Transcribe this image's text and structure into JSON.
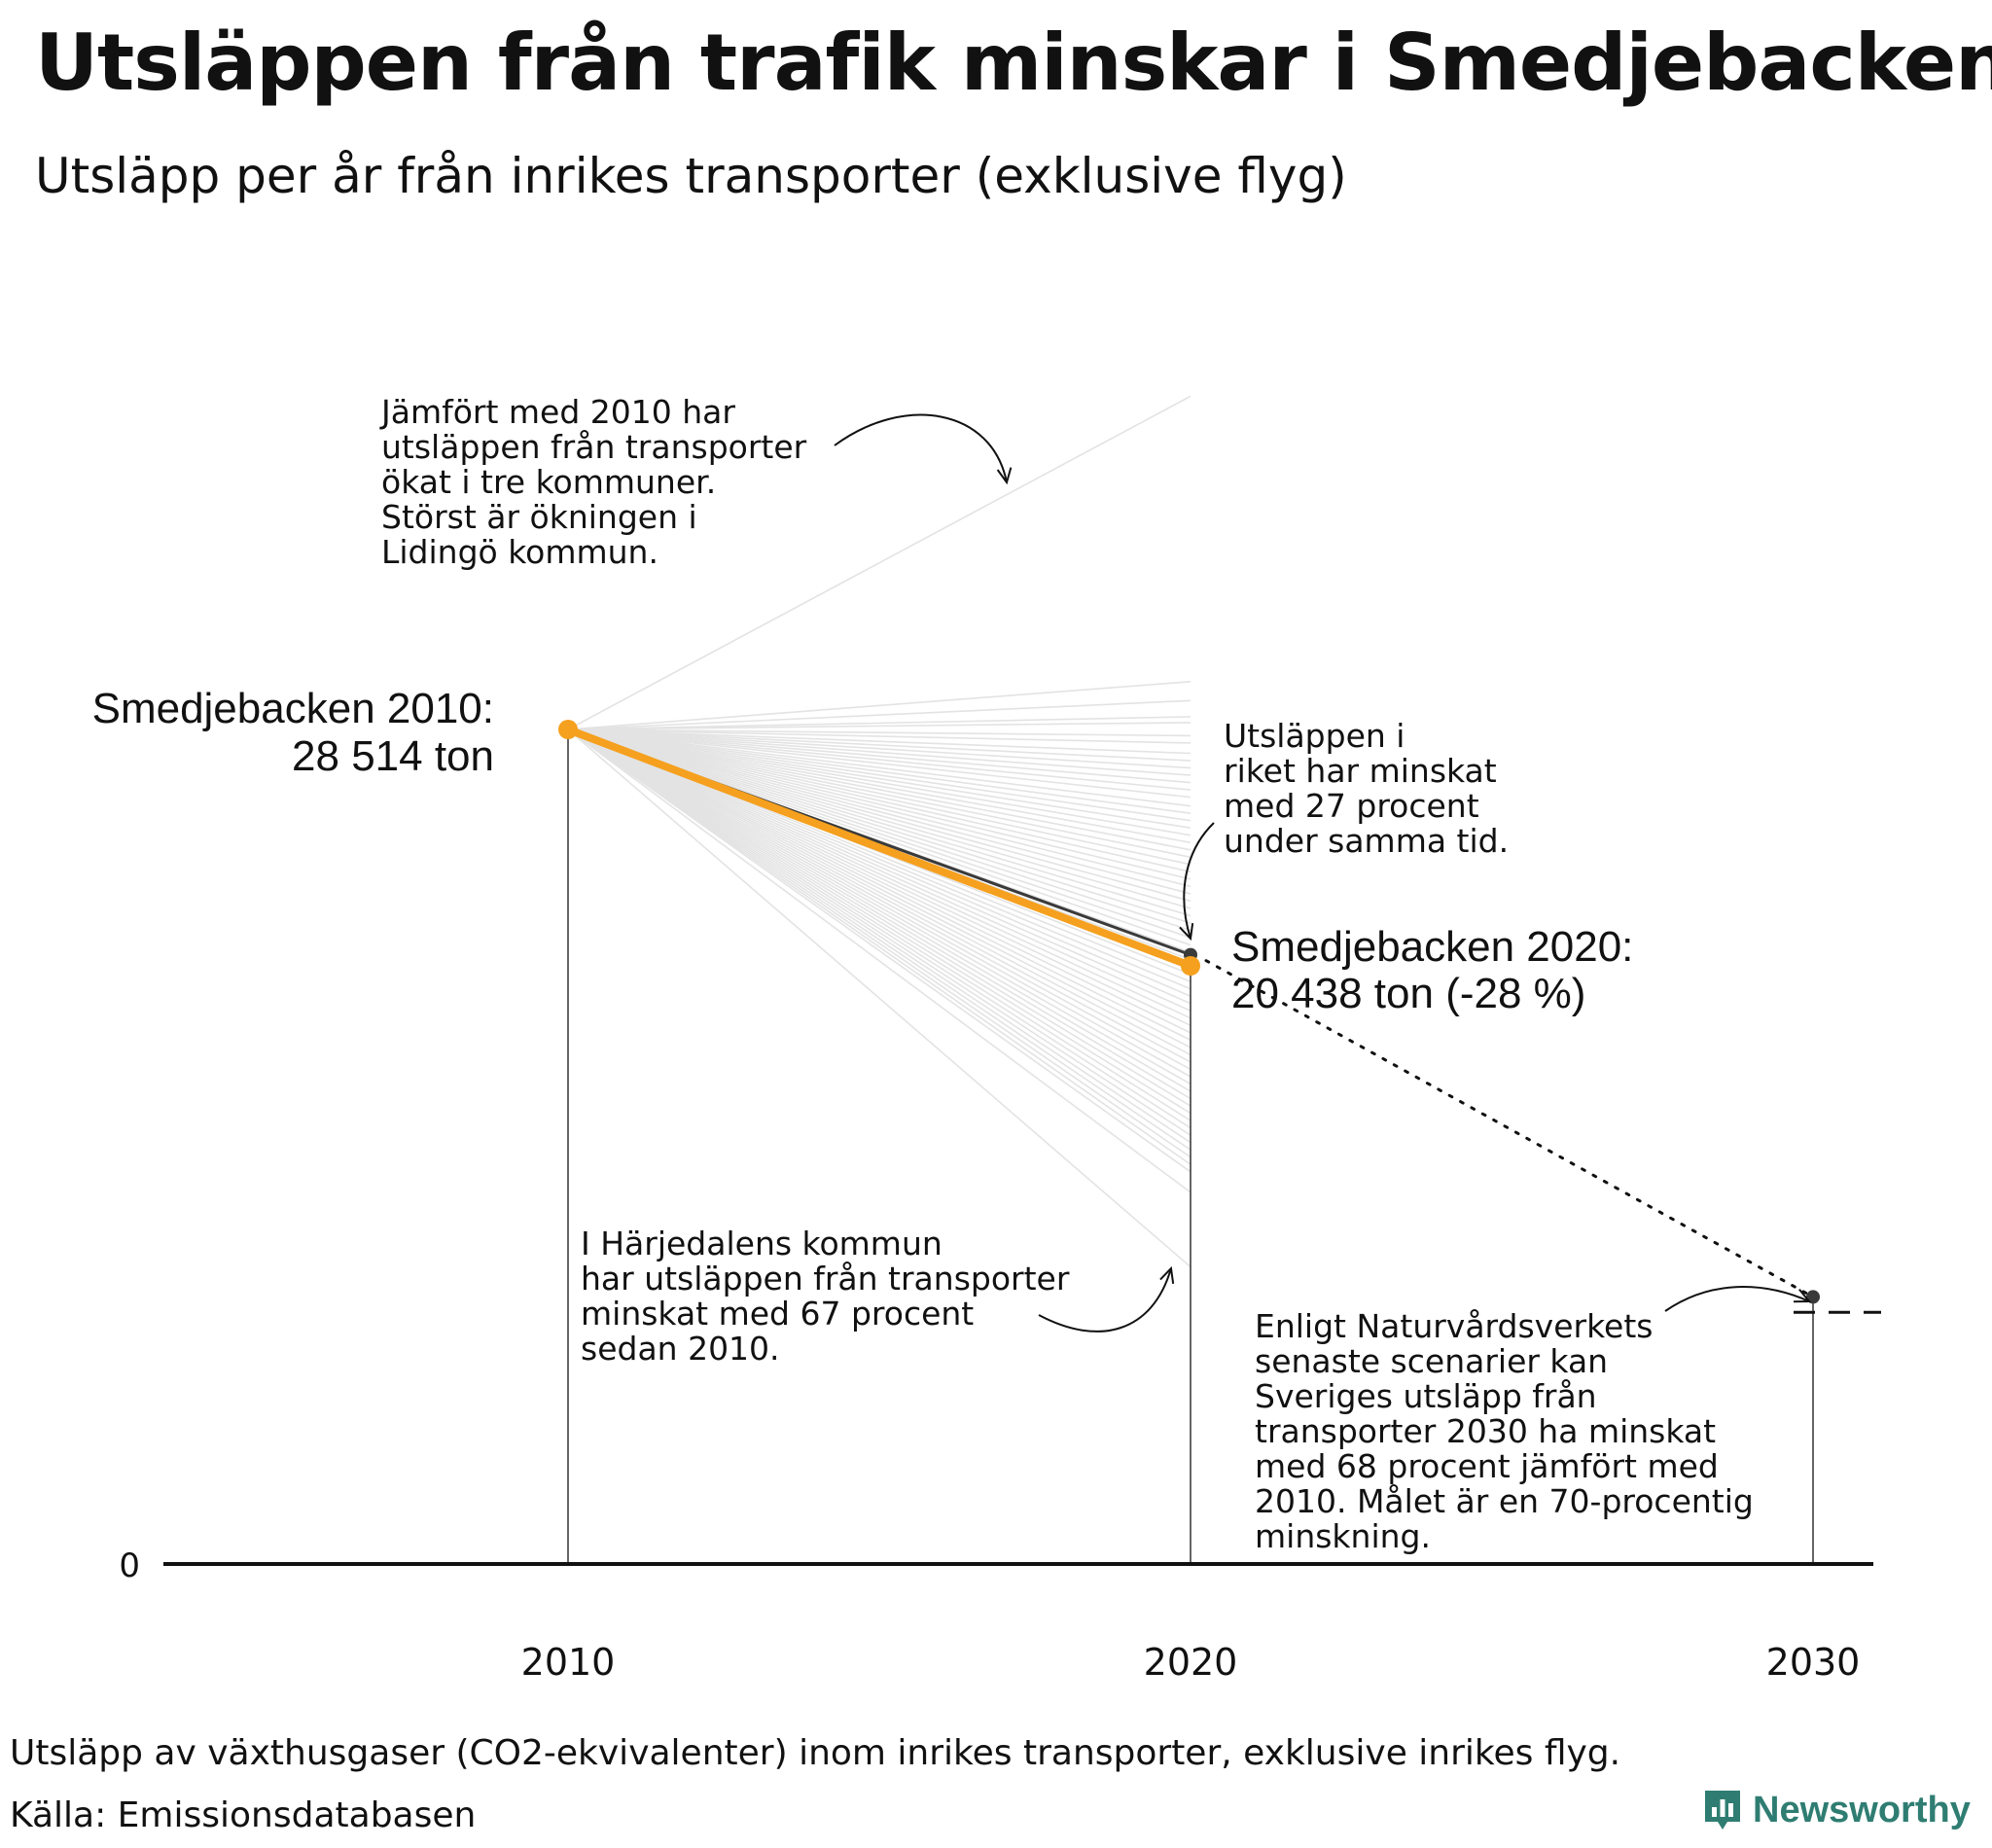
{
  "chart_data": {
    "type": "line",
    "title": "Utsläppen från trafik minskar i Smedjebacken",
    "subtitle": "Utsläpp per år från inrikes transporter (exklusive flyg)",
    "x_ticks": [
      "2010",
      "2020",
      "2030"
    ],
    "y_zero_label": "0",
    "series": [
      {
        "name": "Smedjebacken",
        "x": [
          2010,
          2020
        ],
        "values": [
          28514,
          20438
        ]
      },
      {
        "name": "",
        "x": [
          2010,
          2020
        ],
        "values": [
          28514,
          20816
        ]
      },
      {
        "name": "",
        "x": [
          2020,
          2030
        ],
        "values": [
          20816,
          9125
        ]
      }
    ],
    "background_municipalities_2020": [
      39900,
      30150,
      29500,
      28950,
      28750,
      28300,
      28050,
      27700,
      27450,
      27200,
      26950,
      26700,
      26450,
      26200,
      25900,
      25650,
      25400,
      25150,
      24900,
      24650,
      24400,
      24150,
      23900,
      23650,
      23400,
      23150,
      22900,
      22650,
      22400,
      22150,
      21900,
      21650,
      21400,
      21150,
      20900,
      20650,
      20400,
      20150,
      19900,
      19650,
      19400,
      19150,
      18900,
      18650,
      18400,
      18150,
      17900,
      17650,
      17400,
      17150,
      16900,
      16650,
      16400,
      16150,
      15900,
      15650,
      15400,
      15150,
      14900,
      14650,
      14400,
      14150,
      13900,
      13650,
      13400,
      12700,
      10150
    ],
    "target_2030": 8600,
    "colors": {
      "highlight": "#f5a01e",
      "national": "#3a3a3a",
      "background": "#e3e3e3",
      "axis": "#111111"
    },
    "labels": {
      "smed_2010_line1": "Smedjebacken 2010:",
      "smed_2010_line2": "28 514 ton",
      "smed_2020_line1": "Smedjebacken 2020:",
      "smed_2020_line2": "20 438 ton (-28 %)"
    },
    "annotations": {
      "increase": [
        "Jämfört med 2010 har",
        "utsläppen från transporter",
        "ökat i tre kommuner.",
        "Störst är ökningen i",
        "Lidingö kommun."
      ],
      "national": [
        "Utsläppen i",
        "riket har minskat",
        "med 27 procent",
        "under samma tid."
      ],
      "harjedalen": [
        "I Härjedalens kommun",
        "har utsläppen från transporter",
        "minskat med 67 procent",
        "sedan 2010."
      ],
      "scenario": [
        "Enligt Naturvårdsverkets",
        "senaste scenarier kan",
        "Sveriges utsläpp från",
        "transporter 2030 ha minskat",
        "med 68 procent jämfört med",
        "2010. Målet är en 70-procentig",
        "minskning."
      ]
    }
  },
  "footer": {
    "note": "Utsläpp av växthusgaser (CO2-ekvivalenter) inom inrikes transporter, exklusive inrikes flyg.",
    "source": "Källa: Emissionsdatabasen",
    "brand": "Newsworthy"
  }
}
